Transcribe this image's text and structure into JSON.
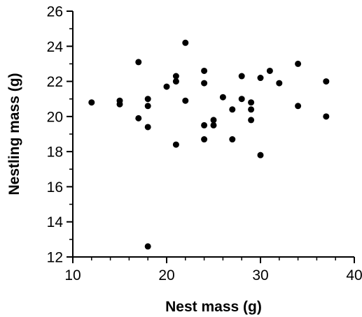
{
  "chart_data": {
    "type": "scatter",
    "xlabel": "Nest mass (g)",
    "ylabel": "Nestling mass (g)",
    "xlim": [
      10,
      40
    ],
    "ylim": [
      12,
      26
    ],
    "x_major_ticks": [
      10,
      20,
      30,
      40
    ],
    "x_minor_ticks": [
      12,
      14,
      16,
      18,
      22,
      24,
      26,
      28,
      32,
      34,
      36,
      38
    ],
    "y_major_ticks": [
      12,
      14,
      16,
      18,
      20,
      22,
      24,
      26
    ],
    "y_minor_ticks": [
      13,
      15,
      17,
      19,
      21,
      23,
      25
    ],
    "grid": false,
    "legend": "none",
    "marker_color": "#000000",
    "points": [
      {
        "x": 12,
        "y": 20.8
      },
      {
        "x": 15,
        "y": 20.7
      },
      {
        "x": 15,
        "y": 20.9
      },
      {
        "x": 17,
        "y": 23.1
      },
      {
        "x": 17,
        "y": 19.9
      },
      {
        "x": 18,
        "y": 21.0
      },
      {
        "x": 18,
        "y": 20.6
      },
      {
        "x": 18,
        "y": 19.4
      },
      {
        "x": 18,
        "y": 12.6
      },
      {
        "x": 20,
        "y": 21.7
      },
      {
        "x": 21,
        "y": 22.3
      },
      {
        "x": 21,
        "y": 22.0
      },
      {
        "x": 21,
        "y": 18.4
      },
      {
        "x": 22,
        "y": 24.2
      },
      {
        "x": 22,
        "y": 20.9
      },
      {
        "x": 24,
        "y": 22.6
      },
      {
        "x": 24,
        "y": 21.9
      },
      {
        "x": 24,
        "y": 19.5
      },
      {
        "x": 24,
        "y": 18.7
      },
      {
        "x": 25,
        "y": 19.8
      },
      {
        "x": 25,
        "y": 19.5
      },
      {
        "x": 26,
        "y": 21.1
      },
      {
        "x": 27,
        "y": 20.4
      },
      {
        "x": 27,
        "y": 18.7
      },
      {
        "x": 28,
        "y": 22.3
      },
      {
        "x": 28,
        "y": 21.0
      },
      {
        "x": 29,
        "y": 20.8
      },
      {
        "x": 29,
        "y": 20.4
      },
      {
        "x": 29,
        "y": 19.8
      },
      {
        "x": 30,
        "y": 22.2
      },
      {
        "x": 30,
        "y": 17.8
      },
      {
        "x": 31,
        "y": 22.6
      },
      {
        "x": 32,
        "y": 21.9
      },
      {
        "x": 34,
        "y": 23.0
      },
      {
        "x": 34,
        "y": 20.6
      },
      {
        "x": 37,
        "y": 22.0
      },
      {
        "x": 37,
        "y": 20.0
      }
    ]
  }
}
